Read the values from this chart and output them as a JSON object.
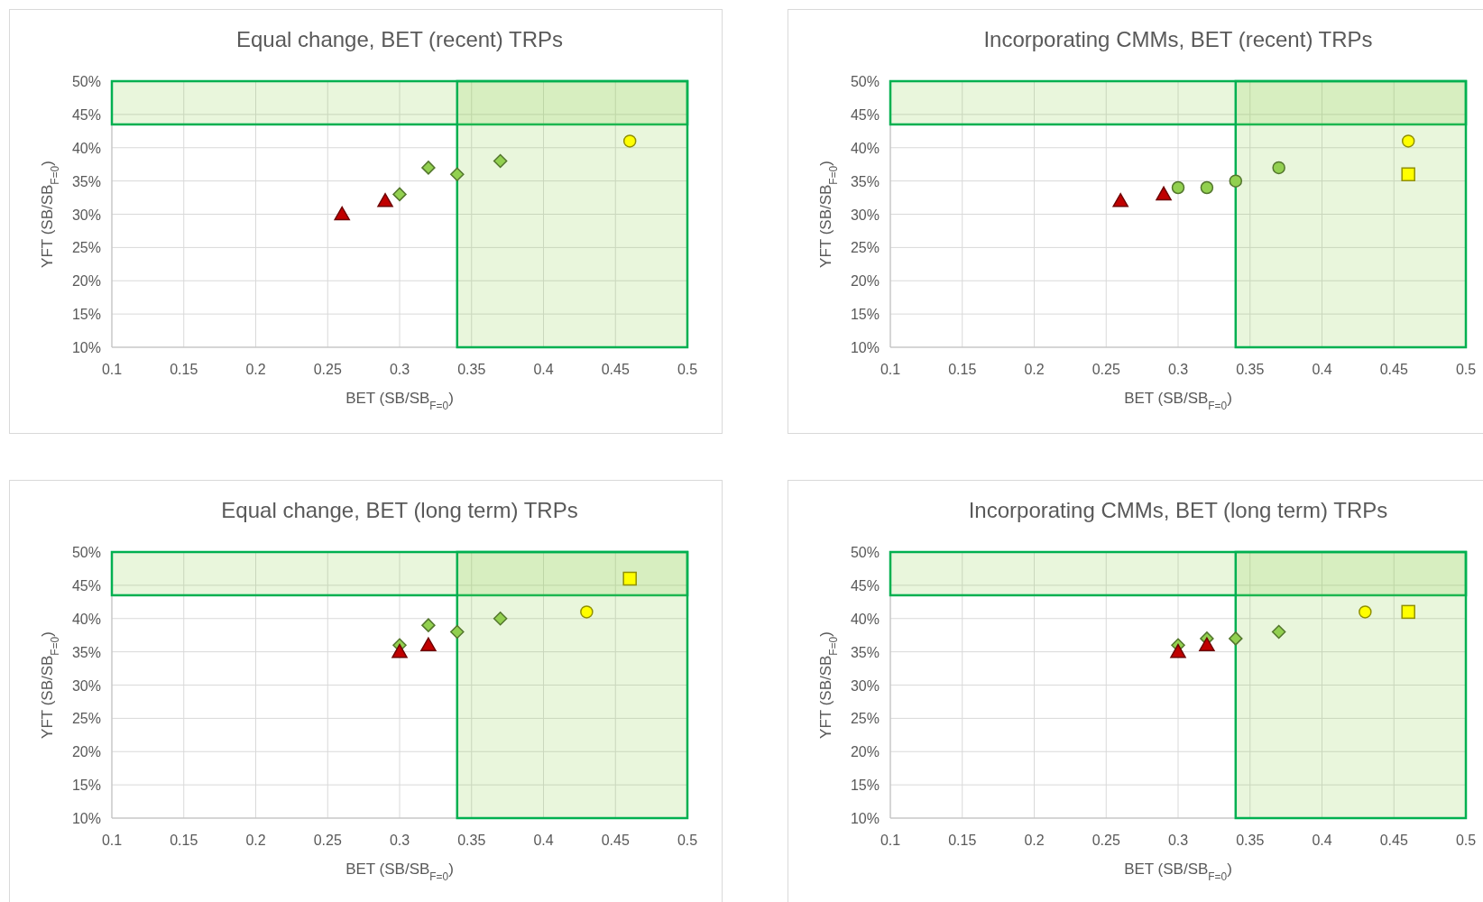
{
  "chart_data": [
    {
      "type": "scatter",
      "title": "Equal change, BET (recent) TRPs",
      "xlabel": "BET (SB/SB$_{F=0}$)",
      "ylabel": "YFT (SB/SB$_{F=0}$)",
      "xlim": [
        0.1,
        0.5
      ],
      "xticks": [
        0.1,
        0.15,
        0.2,
        0.25,
        0.3,
        0.35,
        0.4,
        0.45,
        0.5
      ],
      "ylim": [
        10,
        50
      ],
      "yticks": [
        {
          "value": 10,
          "label": "10%"
        },
        {
          "value": 15,
          "label": "15%"
        },
        {
          "value": 20,
          "label": "20%"
        },
        {
          "value": 25,
          "label": "25%"
        },
        {
          "value": 30,
          "label": "30%"
        },
        {
          "value": 35,
          "label": "35%"
        },
        {
          "value": 40,
          "label": "40%"
        },
        {
          "value": 45,
          "label": "45%"
        },
        {
          "value": 50,
          "label": "50%"
        }
      ],
      "grid": true,
      "bands": [
        {
          "axis": "y",
          "from": 43.5,
          "to": 50,
          "color": "#92d050"
        },
        {
          "axis": "x",
          "from": 0.34,
          "to": 0.5,
          "color": "#92d050"
        }
      ],
      "series": [
        {
          "color": "#c00000",
          "marker": "triangle",
          "x": [
            0.26,
            0.29
          ],
          "values": [
            30,
            32
          ]
        },
        {
          "color": "#92d050",
          "marker": "diamond",
          "x": [
            0.3,
            0.32,
            0.34,
            0.37
          ],
          "values": [
            33,
            37,
            36,
            38
          ]
        },
        {
          "color": "#ffff00",
          "marker": "circle",
          "x": [
            0.46
          ],
          "values": [
            41
          ]
        }
      ]
    },
    {
      "type": "scatter",
      "title": "Incorporating CMMs, BET (recent) TRPs",
      "xlabel": "BET (SB/SB$_{F=0}$)",
      "ylabel": "YFT (SB/SB$_{F=0}$)",
      "xlim": [
        0.1,
        0.5
      ],
      "xticks": [
        0.1,
        0.15,
        0.2,
        0.25,
        0.3,
        0.35,
        0.4,
        0.45,
        0.5
      ],
      "ylim": [
        10,
        50
      ],
      "yticks": [
        {
          "value": 10,
          "label": "10%"
        },
        {
          "value": 15,
          "label": "15%"
        },
        {
          "value": 20,
          "label": "20%"
        },
        {
          "value": 25,
          "label": "25%"
        },
        {
          "value": 30,
          "label": "30%"
        },
        {
          "value": 35,
          "label": "35%"
        },
        {
          "value": 40,
          "label": "40%"
        },
        {
          "value": 45,
          "label": "45%"
        },
        {
          "value": 50,
          "label": "50%"
        }
      ],
      "grid": true,
      "bands": [
        {
          "axis": "y",
          "from": 43.5,
          "to": 50,
          "color": "#92d050"
        },
        {
          "axis": "x",
          "from": 0.34,
          "to": 0.5,
          "color": "#92d050"
        }
      ],
      "series": [
        {
          "color": "#c00000",
          "marker": "triangle",
          "x": [
            0.26,
            0.29
          ],
          "values": [
            32,
            33
          ]
        },
        {
          "color": "#92d050",
          "marker": "circle",
          "x": [
            0.3,
            0.32,
            0.34,
            0.37
          ],
          "values": [
            34,
            34,
            35,
            37
          ]
        },
        {
          "color": "#ffff00",
          "marker": "square",
          "x": [
            0.46
          ],
          "values": [
            36
          ]
        },
        {
          "color": "#ffff00",
          "marker": "circle",
          "x": [
            0.46
          ],
          "values": [
            41
          ]
        }
      ]
    },
    {
      "type": "scatter",
      "title": "Equal change, BET (long term) TRPs",
      "xlabel": "BET (SB/SB$_{F=0}$)",
      "ylabel": "YFT (SB/SB$_{F=0}$)",
      "xlim": [
        0.1,
        0.5
      ],
      "xticks": [
        0.1,
        0.15,
        0.2,
        0.25,
        0.3,
        0.35,
        0.4,
        0.45,
        0.5
      ],
      "ylim": [
        10,
        50
      ],
      "yticks": [
        {
          "value": 10,
          "label": "10%"
        },
        {
          "value": 15,
          "label": "15%"
        },
        {
          "value": 20,
          "label": "20%"
        },
        {
          "value": 25,
          "label": "25%"
        },
        {
          "value": 30,
          "label": "30%"
        },
        {
          "value": 35,
          "label": "35%"
        },
        {
          "value": 40,
          "label": "40%"
        },
        {
          "value": 45,
          "label": "45%"
        },
        {
          "value": 50,
          "label": "50%"
        }
      ],
      "grid": true,
      "bands": [
        {
          "axis": "y",
          "from": 43.5,
          "to": 50,
          "color": "#92d050"
        },
        {
          "axis": "x",
          "from": 0.34,
          "to": 0.5,
          "color": "#92d050"
        }
      ],
      "series": [
        {
          "color": "#92d050",
          "marker": "diamond",
          "x": [
            0.3,
            0.32,
            0.34,
            0.37
          ],
          "values": [
            36,
            39,
            38,
            40
          ]
        },
        {
          "color": "#c00000",
          "marker": "triangle",
          "x": [
            0.3,
            0.32
          ],
          "values": [
            35,
            36
          ]
        },
        {
          "color": "#ffff00",
          "marker": "square",
          "x": [
            0.46
          ],
          "values": [
            46
          ]
        },
        {
          "color": "#ffff00",
          "marker": "circle",
          "x": [
            0.43
          ],
          "values": [
            41
          ]
        }
      ]
    },
    {
      "type": "scatter",
      "title": "Incorporating CMMs, BET (long term) TRPs",
      "xlabel": "BET (SB/SB$_{F=0}$)",
      "ylabel": "YFT (SB/SB$_{F=0}$)",
      "xlim": [
        0.1,
        0.5
      ],
      "xticks": [
        0.1,
        0.15,
        0.2,
        0.25,
        0.3,
        0.35,
        0.4,
        0.45,
        0.5
      ],
      "ylim": [
        10,
        50
      ],
      "yticks": [
        {
          "value": 10,
          "label": "10%"
        },
        {
          "value": 15,
          "label": "15%"
        },
        {
          "value": 20,
          "label": "20%"
        },
        {
          "value": 25,
          "label": "25%"
        },
        {
          "value": 30,
          "label": "30%"
        },
        {
          "value": 35,
          "label": "35%"
        },
        {
          "value": 40,
          "label": "40%"
        },
        {
          "value": 45,
          "label": "45%"
        },
        {
          "value": 50,
          "label": "50%"
        }
      ],
      "grid": true,
      "bands": [
        {
          "axis": "y",
          "from": 43.5,
          "to": 50,
          "color": "#92d050"
        },
        {
          "axis": "x",
          "from": 0.34,
          "to": 0.5,
          "color": "#92d050"
        }
      ],
      "series": [
        {
          "color": "#92d050",
          "marker": "diamond",
          "x": [
            0.3,
            0.32,
            0.34,
            0.37
          ],
          "values": [
            36,
            37,
            37,
            38
          ]
        },
        {
          "color": "#c00000",
          "marker": "triangle",
          "x": [
            0.3,
            0.32
          ],
          "values": [
            35,
            36
          ]
        },
        {
          "color": "#ffff00",
          "marker": "square",
          "x": [
            0.46
          ],
          "values": [
            41
          ]
        },
        {
          "color": "#ffff00",
          "marker": "circle",
          "x": [
            0.43
          ],
          "values": [
            41
          ]
        }
      ]
    }
  ]
}
